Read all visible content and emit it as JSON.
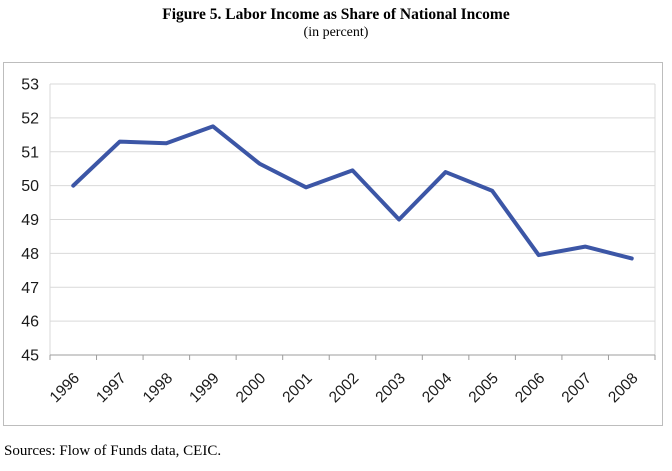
{
  "title": "Figure 5. Labor Income as Share of National Income",
  "subtitle": "(in percent)",
  "source_note": "Sources: Flow of Funds data, CEIC.",
  "colors": {
    "line": "#3C56A6",
    "gridline": "#d9d9d9",
    "plot_border": "#d9d9d9",
    "axis": "#9c9c9c",
    "frame_border": "#bdbdbd",
    "label_text": "#1a1a1a"
  },
  "chart_data": {
    "type": "line",
    "title": "Figure 5. Labor Income as Share of National Income",
    "subtitle": "(in percent)",
    "categories": [
      "1996",
      "1997",
      "1998",
      "1999",
      "2000",
      "2001",
      "2002",
      "2003",
      "2004",
      "2005",
      "2006",
      "2007",
      "2008"
    ],
    "series": [
      {
        "name": "Labor income as share of national income (percent)",
        "values": [
          50.0,
          51.3,
          51.25,
          51.75,
          50.65,
          49.95,
          50.45,
          49.0,
          50.4,
          49.85,
          47.95,
          48.2,
          47.85
        ]
      }
    ],
    "xlabel": "",
    "ylabel": "",
    "ylim": [
      45,
      53
    ],
    "ytick_step": 1,
    "yticks": [
      45,
      46,
      47,
      48,
      49,
      50,
      51,
      52,
      53
    ],
    "grid": true,
    "legend": false,
    "x_label_rotation_deg": 45,
    "source": "Sources: Flow of Funds data, CEIC."
  }
}
